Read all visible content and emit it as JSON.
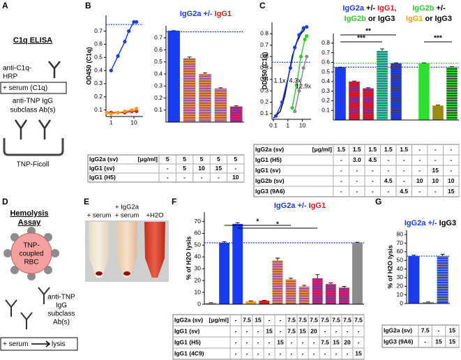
{
  "panel_labels": [
    "A",
    "B",
    "C",
    "D",
    "E",
    "F",
    "G"
  ],
  "panel_a": {
    "title": "C1q ELISA",
    "detector_lines": [
      "anti-C1q-",
      "HRP"
    ],
    "serum": "+ serum (C1q)",
    "antibody_lines": [
      "anti-TNP IgG",
      "subclass Ab(s)"
    ],
    "antigen": "TNP-Ficoll"
  },
  "panel_d": {
    "title_lines": [
      "Hemolysis",
      "Assay"
    ],
    "cell_lines": [
      "TNP-",
      "coupled",
      "RBC"
    ],
    "antibody_lines": [
      "anti-TNP",
      "IgG",
      "subclass",
      "Ab(s)"
    ],
    "serum": "+ serum",
    "result": "lysis"
  },
  "panel_e": {
    "labels": [
      "+ serum",
      "+ IgG2a",
      "+ serum",
      "+H2O"
    ]
  },
  "chart_data": [
    {
      "type": "line",
      "y_label": "OD450 (C1q)",
      "log_x": true,
      "xlim": [
        0.6,
        25
      ],
      "xticks": [
        1,
        10
      ],
      "ylim": [
        0.05,
        0.82
      ],
      "yticks": [
        0.1,
        0.2,
        0.3,
        0.4,
        0.5,
        0.6,
        0.7
      ],
      "reference_lines": [
        {
          "value": 0.75,
          "color": "#1a3cf0"
        }
      ],
      "series": [
        {
          "color": "#1a3cf0",
          "markers": true,
          "x": [
            1,
            2,
            4,
            6,
            10,
            13
          ],
          "values": [
            0.4,
            0.51,
            0.62,
            0.7,
            0.77,
            0.77
          ]
        },
        {
          "color": "#e8141c",
          "markers": true,
          "x": [
            0.65,
            1,
            2,
            4,
            8,
            13
          ],
          "values": [
            0.08,
            0.08,
            0.08,
            0.08,
            0.09,
            0.09
          ]
        },
        {
          "color": "#f39c1e",
          "markers": true,
          "x": [
            0.65,
            1,
            2,
            4,
            8,
            13
          ],
          "values": [
            0.08,
            0.07,
            0.08,
            0.09,
            0.1,
            0.11
          ]
        }
      ]
    },
    {
      "type": "bar",
      "title_groups": [
        [
          [
            {
              "text": "IgG2a +/-",
              "color": "#1a3cf0"
            },
            {
              "text": "IgG1",
              "color": "#e8141c"
            }
          ]
        ]
      ],
      "ylim": [
        0,
        0.8
      ],
      "yticks": [
        0.1,
        0.2,
        0.3,
        0.4,
        0.5,
        0.6,
        0.7
      ],
      "reference_lines": [
        {
          "value": 0.75,
          "color": "#1a3cf0"
        }
      ],
      "values": [
        0.76,
        0.53,
        0.4,
        0.28,
        0.13
      ],
      "errors": [
        0,
        0.01,
        0.01,
        0.005,
        0.005
      ],
      "fills": [
        {
          "color": "#1a3cf0"
        },
        {
          "color": "#f0903a",
          "stripe": "#8a4ca8"
        },
        {
          "color": "#f0903a",
          "stripe": "#8a4ca8"
        },
        {
          "color": "#f0903a",
          "stripe": "#8a4ca8"
        },
        {
          "color": "#e0206a",
          "stripe": "#7a3090"
        }
      ],
      "table": [
        {
          "label": "IgG2a (sv)",
          "unit": "[μg/ml]",
          "color": "#1a3cf0",
          "cells": [
            "5",
            "5",
            "5",
            "5",
            "5"
          ]
        },
        {
          "label": "IgG1 (sv)",
          "color": "#f39c1e",
          "cells": [
            "-",
            "5",
            "10",
            "15",
            "-"
          ]
        },
        {
          "label": "IgG1 (H5)",
          "color": "#e8141c",
          "cells": [
            "-",
            "-",
            "-",
            "-",
            "10"
          ]
        }
      ]
    },
    {
      "type": "line",
      "y_label": "OD450 (C1q)",
      "log_x": true,
      "xlim": [
        0.08,
        40
      ],
      "xticks": [
        0.1,
        1,
        10
      ],
      "ylim": [
        0.05,
        0.9
      ],
      "yticks": [
        0.1,
        0.2,
        0.3,
        0.4,
        0.5,
        0.6,
        0.7,
        0.8
      ],
      "reference_lines": [
        {
          "value": 0.55,
          "color": "#1a3cf0"
        }
      ],
      "annotations": [
        "1.1x",
        "4.3x",
        "12.9x"
      ],
      "series": [
        {
          "color": "#000000",
          "markers": false,
          "x": [
            0.1,
            0.3,
            0.6,
            1,
            2,
            4,
            8,
            15
          ],
          "values": [
            0.06,
            0.12,
            0.25,
            0.4,
            0.6,
            0.72,
            0.8,
            0.84
          ]
        },
        {
          "color": "#1a3cf0",
          "markers": true,
          "x": [
            0.15,
            0.4,
            1.5,
            3,
            6,
            12,
            20
          ],
          "values": [
            0.08,
            0.2,
            0.5,
            0.68,
            0.79,
            0.85,
            0.86
          ]
        },
        {
          "color": "#2ecc2e",
          "markers": true,
          "x": [
            2,
            4,
            8,
            15,
            20
          ],
          "values": [
            0.15,
            0.35,
            0.6,
            0.75,
            0.78
          ]
        },
        {
          "color": "#8c8c8c",
          "markers": true,
          "x": [
            3,
            6,
            12,
            20
          ],
          "values": [
            0.12,
            0.3,
            0.5,
            0.6
          ]
        }
      ]
    },
    {
      "type": "bar",
      "title_groups": [
        [
          [
            {
              "text": "IgG2a",
              "color": "#1a3cf0"
            },
            {
              "text": "+/-",
              "color": "#000000"
            },
            {
              "text": "IgG1,",
              "color": "#e8141c"
            }
          ],
          [
            {
              "text": "IgG2b",
              "color": "#2ecc2e"
            },
            {
              "text": "or IgG3",
              "color": "#000000"
            }
          ]
        ],
        [
          [
            {
              "text": "IgG2b",
              "color": "#2ecc2e"
            },
            {
              "text": "+/-",
              "color": "#000000"
            }
          ],
          [
            {
              "text": "IgG1",
              "color": "#f39c1e"
            },
            {
              "text": "or IgG3",
              "color": "#000000"
            }
          ]
        ]
      ],
      "ylim": [
        0,
        0.9
      ],
      "yticks": [
        0.1,
        0.2,
        0.3,
        0.4,
        0.5,
        0.6,
        0.7,
        0.8
      ],
      "reference_lines": [
        {
          "value": 0.55,
          "color": "#1a3cf0"
        },
        {
          "value": 0.59,
          "color": "#2ecc2e"
        }
      ],
      "significance": [
        "**",
        "***",
        "***"
      ],
      "values": [
        0.55,
        0.4,
        0.33,
        0.72,
        0.59,
        0.59,
        0.15,
        0.55
      ],
      "errors": [
        0,
        0.005,
        0.005,
        0.02,
        0.005,
        0.005,
        0.005,
        0.005
      ],
      "fills": [
        {
          "color": "#1a3cf0"
        },
        {
          "color": "#e8141c",
          "stripe": "#7a2a90"
        },
        {
          "color": "#e8141c",
          "stripe": "#7a2a90"
        },
        {
          "color": "#40d890",
          "stripe": "#2a6a8a"
        },
        {
          "color": "#1a3cf0",
          "stripe": "#3a3a6a"
        },
        {
          "color": "#2ee02e"
        },
        {
          "color": "#9a8a10"
        },
        {
          "color": "#2ee02e",
          "stripe": "#3a3a3a"
        }
      ],
      "table": [
        {
          "label": "IgG2a (sv)",
          "unit": "[μg/ml]",
          "color": "#1a3cf0",
          "cells": [
            "1.5",
            "1.5",
            "1.5",
            "1.5",
            "1.5",
            "-",
            "-",
            "-"
          ]
        },
        {
          "label": "IgG1 (H5)",
          "color": "#e8141c",
          "cells": [
            "-",
            "3.0",
            "4.5",
            "-",
            "-",
            "-",
            "-",
            "-"
          ]
        },
        {
          "label": "IgG1 (sv)",
          "color": "#f39c1e",
          "cells": [
            "-",
            "-",
            "-",
            "-",
            "-",
            "-",
            "15",
            "-"
          ]
        },
        {
          "label": "IgG2b (sv)",
          "color": "#2ecc2e",
          "cells": [
            "-",
            "-",
            "-",
            "4.5",
            "-",
            "10",
            "10",
            "10"
          ]
        },
        {
          "label": "IgG3 (9A6)",
          "color": "#000000",
          "cells": [
            "-",
            "-",
            "-",
            "-",
            "4.5",
            "-",
            "-",
            "15"
          ]
        }
      ]
    },
    {
      "type": "bar",
      "title_groups": [
        [
          [
            {
              "text": "IgG2a +/-",
              "color": "#1a3cf0"
            },
            {
              "text": "IgG1",
              "color": "#e8141c"
            }
          ]
        ]
      ],
      "y_label": "% of H2O lysis",
      "ylim": [
        0,
        78
      ],
      "yticks": [
        0,
        10,
        20,
        30,
        40,
        50,
        60,
        70
      ],
      "reference_lines": [
        {
          "value": 52,
          "color": "#1a3cf0"
        }
      ],
      "significance": [
        "*",
        "*"
      ],
      "values": [
        1,
        52,
        68,
        2.5,
        3,
        37,
        21,
        15,
        22,
        17,
        14,
        52
      ],
      "errors": [
        0.3,
        1,
        1,
        0.3,
        0.3,
        2,
        1,
        1,
        3,
        1,
        1,
        0.5
      ],
      "fills": [
        {
          "color": "#999999"
        },
        {
          "color": "#1a3cf0"
        },
        {
          "color": "#1a3cf0"
        },
        {
          "color": "#f39c1e"
        },
        {
          "color": "#e8141c"
        },
        {
          "color": "#f0903a",
          "stripe": "#8a4ca8"
        },
        {
          "color": "#f0903a",
          "stripe": "#8a4ca8"
        },
        {
          "color": "#f0903a",
          "stripe": "#8a4ca8"
        },
        {
          "color": "#e0206a",
          "stripe": "#7a3090"
        },
        {
          "color": "#e0206a",
          "stripe": "#7a3090"
        },
        {
          "color": "#e0206a",
          "stripe": "#7a3090"
        },
        {
          "color": "#8c8c8c"
        }
      ],
      "table": [
        {
          "label": "IgG2a (sv)",
          "unit": "[μg/ml]",
          "color": "#1a3cf0",
          "cells": [
            "-",
            "7.5",
            "15",
            "-",
            "-",
            "7.5",
            "7.5",
            "7.5",
            "7.5",
            "7.5",
            "7.5",
            "7.5"
          ]
        },
        {
          "label": "IgG1  (sv)",
          "color": "#f39c1e",
          "cells": [
            "-",
            "-",
            "-",
            "15",
            "-",
            "7.5",
            "15",
            "20",
            "-",
            "-",
            "-",
            "-"
          ]
        },
        {
          "label": "IgG1  (H5)",
          "color": "#e8141c",
          "cells": [
            "-",
            "-",
            "-",
            "-",
            "15",
            "-",
            "-",
            "-",
            "7.5",
            "15",
            "20",
            "-"
          ]
        },
        {
          "label": "IgG1 (4C9)",
          "color": "#000000",
          "cells": [
            "-",
            "-",
            "-",
            "-",
            "-",
            "-",
            "-",
            "-",
            "-",
            "-",
            "-",
            "15"
          ]
        }
      ]
    },
    {
      "type": "bar",
      "title_groups": [
        [
          [
            {
              "text": "IgG2a +/-",
              "color": "#1a3cf0"
            },
            {
              "text": "IgG3",
              "color": "#000000"
            }
          ]
        ]
      ],
      "y_label": "% of H2O lysis",
      "ylim": [
        0,
        85
      ],
      "yticks": [
        0,
        10,
        20,
        30,
        40,
        50,
        60,
        70,
        80
      ],
      "reference_lines": [
        {
          "value": 55,
          "color": "#1a3cf0"
        }
      ],
      "values": [
        55,
        1.5,
        55
      ],
      "errors": [
        1,
        0.3,
        2
      ],
      "fills": [
        {
          "color": "#1a3cf0"
        },
        {
          "color": "#999999"
        },
        {
          "color": "#1a3cf0",
          "stripe": "#888888"
        }
      ],
      "table": [
        {
          "label": "IgG2a (sv)",
          "color": "#1a3cf0",
          "cells": [
            "7.5",
            "-",
            "15"
          ]
        },
        {
          "label": "IgG3 (9A6)",
          "color": "#000000",
          "cells": [
            "-",
            "15",
            "15"
          ]
        }
      ]
    }
  ]
}
